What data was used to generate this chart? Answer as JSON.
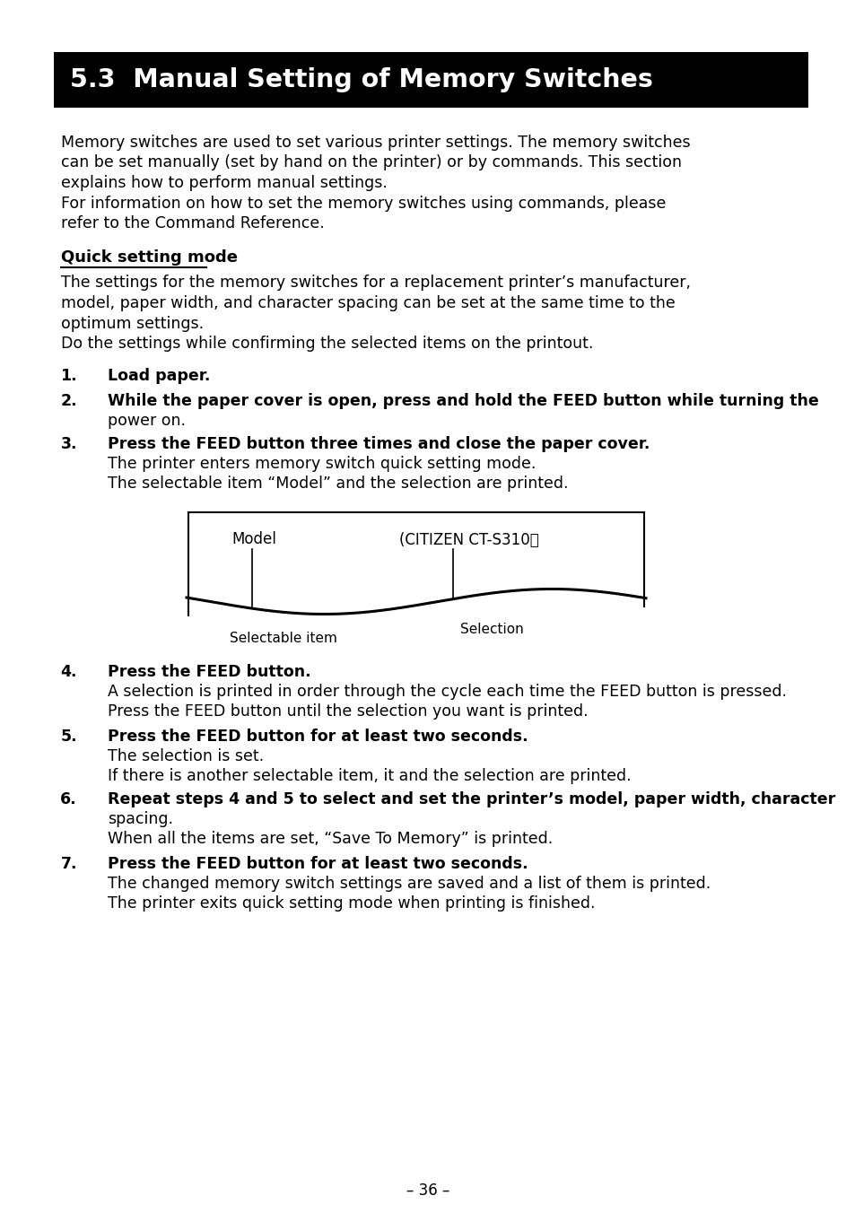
{
  "title": "5.3  Manual Setting of Memory Switches",
  "title_bg": "#000000",
  "title_color": "#ffffff",
  "page_number": "– 36 –",
  "body_text": [
    "Memory switches are used to set various printer settings. The memory switches",
    "can be set manually (set by hand on the printer) or by commands. This section",
    "explains how to perform manual settings.",
    "For information on how to set the memory switches using commands, please",
    "refer to the Command Reference."
  ],
  "quick_setting_title": "Quick setting mode",
  "quick_setting_text": [
    "The settings for the memory switches for a replacement printer’s manufacturer,",
    "model, paper width, and character spacing can be set at the same time to the",
    "optimum settings.",
    "Do the settings while confirming the selected items on the printout."
  ],
  "numbered_items": [
    {
      "num": "1.",
      "bold": "Load paper.",
      "normal": ""
    },
    {
      "num": "2.",
      "bold": "While the paper cover is open, press and hold the FEED button while turning the",
      "normal": "power on."
    },
    {
      "num": "3.",
      "bold": "Press the FEED button three times and close the paper cover.",
      "normal": "The printer enters memory switch quick setting mode.\nThe selectable item “Model” and the selection are printed."
    },
    {
      "num": "4.",
      "bold": "Press the FEED button.",
      "normal": "A selection is printed in order through the cycle each time the FEED button is pressed.\nPress the FEED button until the selection you want is printed."
    },
    {
      "num": "5.",
      "bold": "Press the FEED button for at least two seconds.",
      "normal": "The selection is set.\nIf there is another selectable item, it and the selection are printed."
    },
    {
      "num": "6.",
      "bold": "Repeat steps 4 and 5 to select and set the printer’s model, paper width, character",
      "normal": "spacing.\nWhen all the items are set, “Save To Memory” is printed."
    },
    {
      "num": "7.",
      "bold": "Press the FEED button for at least two seconds.",
      "normal": "The changed memory switch settings are saved and a list of them is printed.\nThe printer exits quick setting mode when printing is finished."
    }
  ],
  "diagram_label1": "Model",
  "diagram_label2": "(CITIZEN CT-S310）",
  "diagram_caption1": "Selectable item",
  "diagram_caption2": "Selection",
  "bg_color": "#ffffff",
  "text_color": "#000000"
}
